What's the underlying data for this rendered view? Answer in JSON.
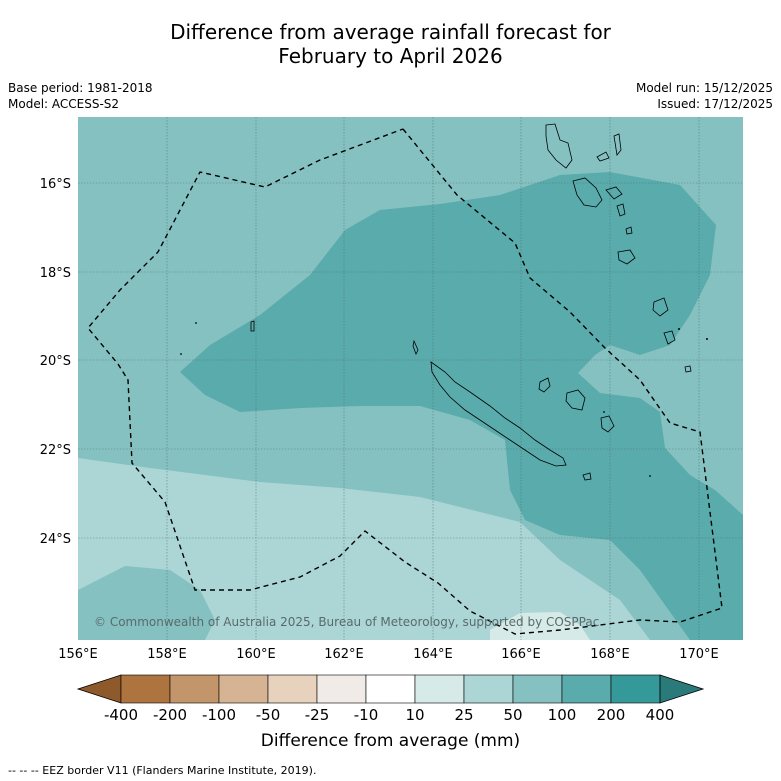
{
  "title_line1": "Difference from average rainfall forecast for",
  "title_line2": "February to April 2026",
  "meta": {
    "base_period": "Base period: 1981-2018",
    "model": "Model: ACCESS-S2",
    "model_run": "Model run: 15/12/2025",
    "issued": "Issued: 17/12/2025"
  },
  "map": {
    "lat_labels": [
      "16°S",
      "18°S",
      "20°S",
      "22°S",
      "24°S"
    ],
    "lon_labels": [
      "156°E",
      "158°E",
      "160°E",
      "162°E",
      "164°E",
      "166°E",
      "168°E",
      "170°E"
    ],
    "copyright": "© Commonwealth of Australia 2025, Bureau of Meteorology, supported by COSPPac"
  },
  "legend": {
    "ticks": [
      "-400",
      "-200",
      "-100",
      "-50",
      "-25",
      "-10",
      "10",
      "25",
      "50",
      "100",
      "200",
      "400"
    ],
    "title": "Difference from average (mm)",
    "colors": {
      "below_min": "#8e5a2b",
      "bins": [
        "#ae7440",
        "#c3956a",
        "#d5b393",
        "#e6d2bd",
        "#f0ebe7",
        "#ffffff",
        "#d6eae8",
        "#acd6d6",
        "#85c1c1",
        "#5aabac",
        "#35999a"
      ],
      "above_max": "#2a7a7a"
    }
  },
  "footer": "--  --  -- EEZ border V11 (Flanders Marine Institute, 2019)."
}
